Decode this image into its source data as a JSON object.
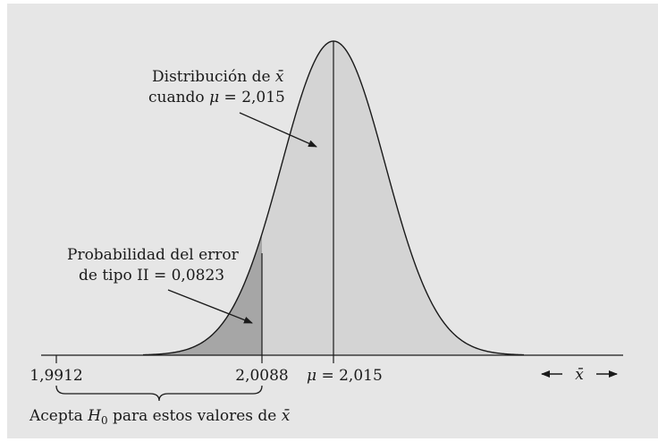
{
  "figure": {
    "background": "#e6e6e6",
    "curve_fill": "#d4d4d4",
    "tail_fill": "#a6a6a6",
    "ink": "#1a1a1a"
  },
  "annotations": {
    "distribution_line1_text": "Distribución de ",
    "distribution_line1_symbol": "x̄",
    "distribution_line2_prefix": "cuando ",
    "distribution_line2_mu": "μ",
    "distribution_line2_value": " = 2,015",
    "error_line1": "Probabilidad del error",
    "error_line2": "de tipo II = 0,0823"
  },
  "axis": {
    "tick_left": "1,9912",
    "tick_right": "2,0088",
    "mean_symbol": "μ",
    "mean_value": " = 2,015",
    "direction_symbol": "x̄"
  },
  "acceptance": {
    "prefix": "Acepta ",
    "h": "H",
    "h_sub": "0",
    "suffix": " para estos valores de ",
    "symbol": "x̄"
  }
}
